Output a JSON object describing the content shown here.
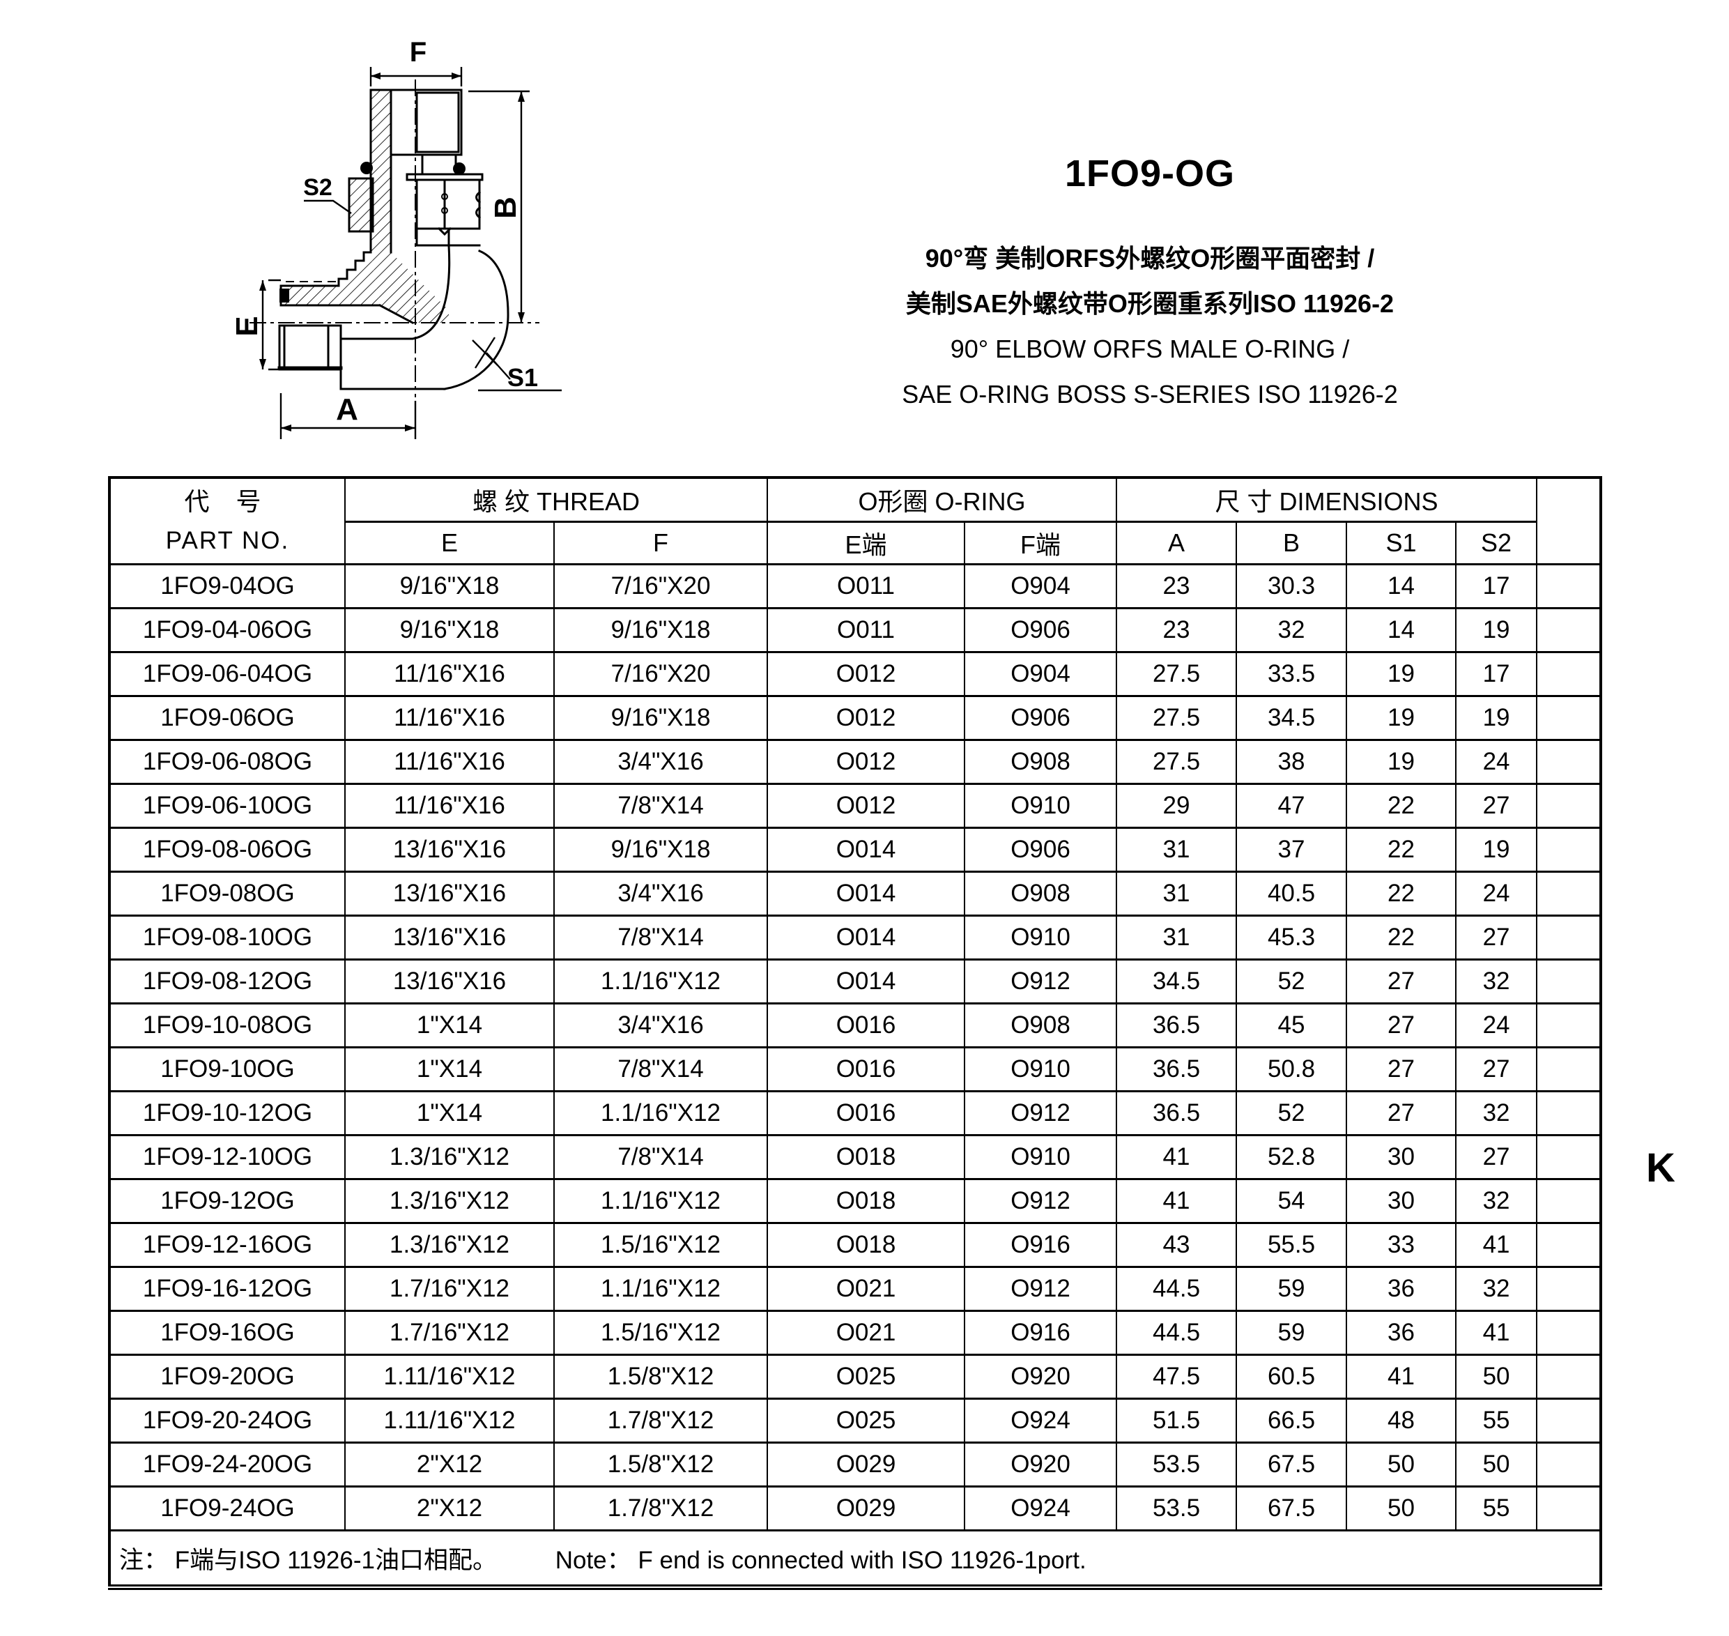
{
  "drawing": {
    "labels": {
      "f": "F",
      "s2": "S2",
      "b": "B",
      "e": "E",
      "a": "A",
      "s1": "S1"
    }
  },
  "header": {
    "model": "1FO9-OG",
    "desc_cn_1": "90°弯 美制ORFS外螺纹O形圈平面密封 /",
    "desc_cn_2": "美制SAE外螺纹带O形圈重系列ISO 11926-2",
    "desc_en_1": "90° ELBOW ORFS MALE O-RING /",
    "desc_en_2": "SAE O-RING BOSS S-SERIES ISO 11926-2"
  },
  "page_marker": "K",
  "table": {
    "group_headers": {
      "part_no_cn": "代 号",
      "part_no_en": "PART NO.",
      "thread": "螺 纹  THREAD",
      "oring": "O形圈 O-RING",
      "dimensions": "尺 寸   DIMENSIONS"
    },
    "sub_headers": [
      "E",
      "F",
      "E端",
      "F端",
      "A",
      "B",
      "S1",
      "S2"
    ],
    "rows": [
      [
        "1FO9-04OG",
        "9/16\"X18",
        "7/16\"X20",
        "O011",
        "O904",
        "23",
        "30.3",
        "14",
        "17"
      ],
      [
        "1FO9-04-06OG",
        "9/16\"X18",
        "9/16\"X18",
        "O011",
        "O906",
        "23",
        "32",
        "14",
        "19"
      ],
      [
        "1FO9-06-04OG",
        "11/16\"X16",
        "7/16\"X20",
        "O012",
        "O904",
        "27.5",
        "33.5",
        "19",
        "17"
      ],
      [
        "1FO9-06OG",
        "11/16\"X16",
        "9/16\"X18",
        "O012",
        "O906",
        "27.5",
        "34.5",
        "19",
        "19"
      ],
      [
        "1FO9-06-08OG",
        "11/16\"X16",
        "3/4\"X16",
        "O012",
        "O908",
        "27.5",
        "38",
        "19",
        "24"
      ],
      [
        "1FO9-06-10OG",
        "11/16\"X16",
        "7/8\"X14",
        "O012",
        "O910",
        "29",
        "47",
        "22",
        "27"
      ],
      [
        "1FO9-08-06OG",
        "13/16\"X16",
        "9/16\"X18",
        "O014",
        "O906",
        "31",
        "37",
        "22",
        "19"
      ],
      [
        "1FO9-08OG",
        "13/16\"X16",
        "3/4\"X16",
        "O014",
        "O908",
        "31",
        "40.5",
        "22",
        "24"
      ],
      [
        "1FO9-08-10OG",
        "13/16\"X16",
        "7/8\"X14",
        "O014",
        "O910",
        "31",
        "45.3",
        "22",
        "27"
      ],
      [
        "1FO9-08-12OG",
        "13/16\"X16",
        "1.1/16\"X12",
        "O014",
        "O912",
        "34.5",
        "52",
        "27",
        "32"
      ],
      [
        "1FO9-10-08OG",
        "1\"X14",
        "3/4\"X16",
        "O016",
        "O908",
        "36.5",
        "45",
        "27",
        "24"
      ],
      [
        "1FO9-10OG",
        "1\"X14",
        "7/8\"X14",
        "O016",
        "O910",
        "36.5",
        "50.8",
        "27",
        "27"
      ],
      [
        "1FO9-10-12OG",
        "1\"X14",
        "1.1/16\"X12",
        "O016",
        "O912",
        "36.5",
        "52",
        "27",
        "32"
      ],
      [
        "1FO9-12-10OG",
        "1.3/16\"X12",
        "7/8\"X14",
        "O018",
        "O910",
        "41",
        "52.8",
        "30",
        "27"
      ],
      [
        "1FO9-12OG",
        "1.3/16\"X12",
        "1.1/16\"X12",
        "O018",
        "O912",
        "41",
        "54",
        "30",
        "32"
      ],
      [
        "1FO9-12-16OG",
        "1.3/16\"X12",
        "1.5/16\"X12",
        "O018",
        "O916",
        "43",
        "55.5",
        "33",
        "41"
      ],
      [
        "1FO9-16-12OG",
        "1.7/16\"X12",
        "1.1/16\"X12",
        "O021",
        "O912",
        "44.5",
        "59",
        "36",
        "32"
      ],
      [
        "1FO9-16OG",
        "1.7/16\"X12",
        "1.5/16\"X12",
        "O021",
        "O916",
        "44.5",
        "59",
        "36",
        "41"
      ],
      [
        "1FO9-20OG",
        "1.11/16\"X12",
        "1.5/8\"X12",
        "O025",
        "O920",
        "47.5",
        "60.5",
        "41",
        "50"
      ],
      [
        "1FO9-20-24OG",
        "1.11/16\"X12",
        "1.7/8\"X12",
        "O025",
        "O924",
        "51.5",
        "66.5",
        "48",
        "55"
      ],
      [
        "1FO9-24-20OG",
        "2\"X12",
        "1.5/8\"X12",
        "O029",
        "O920",
        "53.5",
        "67.5",
        "50",
        "50"
      ],
      [
        "1FO9-24OG",
        "2\"X12",
        "1.7/8\"X12",
        "O029",
        "O924",
        "53.5",
        "67.5",
        "50",
        "55"
      ]
    ],
    "note_cn": "注： F端与ISO 11926-1油口相配。",
    "note_en": "Note：  F end is connected with ISO 11926-1port."
  }
}
